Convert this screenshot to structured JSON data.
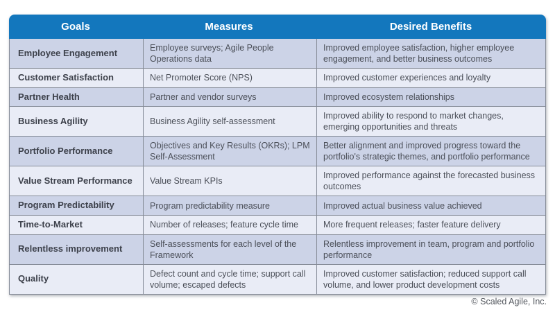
{
  "table": {
    "columns": [
      {
        "label": "Goals"
      },
      {
        "label": "Measures"
      },
      {
        "label": "Desired Benefits"
      }
    ],
    "rows": [
      {
        "goal": "Employee Engagement",
        "measure": "Employee surveys; Agile People Operations data",
        "benefit": "Improved employee satisfaction, higher employee engagement, and better business outcomes"
      },
      {
        "goal": "Customer Satisfaction",
        "measure": "Net Promoter Score (NPS)",
        "benefit": "Improved customer experiences and loyalty"
      },
      {
        "goal": "Partner Health",
        "measure": "Partner and vendor surveys",
        "benefit": "Improved ecosystem relationships"
      },
      {
        "goal": "Business Agility",
        "measure": "Business Agility self-assessment",
        "benefit": "Improved ability to respond to market changes, emerging opportunities and threats"
      },
      {
        "goal": "Portfolio Performance",
        "measure": "Objectives and Key Results (OKRs); LPM Self-Assessment",
        "benefit": "Better alignment and improved progress toward the portfolio's strategic themes, and portfolio performance"
      },
      {
        "goal": "Value Stream Performance",
        "measure": "Value Stream KPIs",
        "benefit": "Improved performance against the forecasted business outcomes"
      },
      {
        "goal": "Program Predictability",
        "measure": "Program predictability measure",
        "benefit": "Improved actual business value achieved"
      },
      {
        "goal": "Time-to-Market",
        "measure": "Number of releases; feature cycle time",
        "benefit": "More frequent releases; faster feature delivery"
      },
      {
        "goal": "Relentless improvement",
        "measure": "Self-assessments for each level of the Framework",
        "benefit": "Relentless improvement in team, program and portfolio performance"
      },
      {
        "goal": "Quality",
        "measure": "Defect count and cycle time; support call volume; escaped defects",
        "benefit": "Improved customer satisfaction; reduced support call volume, and lower product development costs"
      }
    ]
  },
  "footer": {
    "copyright": "© Scaled Agile, Inc."
  },
  "colors": {
    "header_bg": "#1377bd",
    "header_text": "#ffffff",
    "row_odd": "#ccd3e7",
    "row_even": "#e9ecf6",
    "border": "#868c98",
    "goal_text": "#3d414b",
    "body_text": "#4b4f58",
    "footer_text": "#53575e"
  }
}
